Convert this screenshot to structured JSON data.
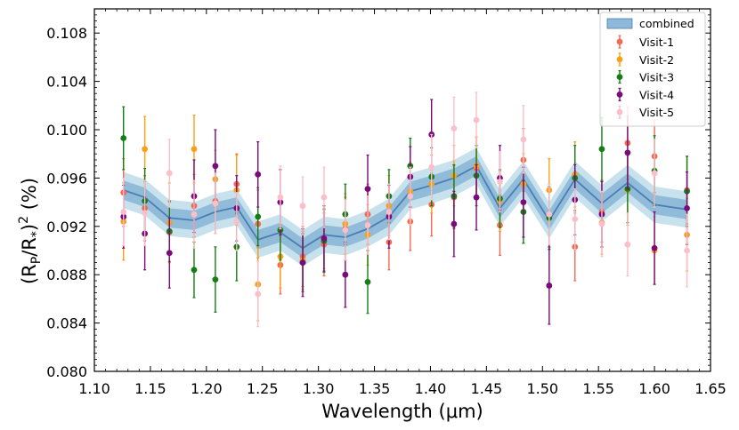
{
  "chart_data": {
    "type": "scatter",
    "xlabel": "Wavelength (μm)",
    "ylabel": "(Rp/R*)^2 (%)",
    "xlim": [
      1.1,
      1.65
    ],
    "ylim": [
      0.08,
      0.11
    ],
    "x_ticks": [
      "1.10",
      "1.15",
      "1.20",
      "1.25",
      "1.30",
      "1.35",
      "1.40",
      "1.45",
      "1.50",
      "1.55",
      "1.60",
      "1.65"
    ],
    "y_ticks": [
      "0.080",
      "0.084",
      "0.088",
      "0.092",
      "0.096",
      "0.100",
      "0.104",
      "0.108"
    ],
    "legend_position": "top-right",
    "wavelengths": [
      1.126,
      1.145,
      1.167,
      1.189,
      1.208,
      1.227,
      1.246,
      1.266,
      1.286,
      1.305,
      1.324,
      1.344,
      1.363,
      1.382,
      1.401,
      1.421,
      1.441,
      1.462,
      1.483,
      1.506,
      1.529,
      1.553,
      1.576,
      1.6,
      1.629
    ],
    "combined": {
      "name": "combined",
      "color": "#4a7eb5",
      "mean": [
        0.095,
        0.0944,
        0.0927,
        0.0925,
        0.0932,
        0.0936,
        0.0909,
        0.0915,
        0.0902,
        0.0913,
        0.0911,
        0.0918,
        0.0928,
        0.0949,
        0.0954,
        0.096,
        0.097,
        0.0935,
        0.0959,
        0.0925,
        0.0959,
        0.0939,
        0.0956,
        0.0938,
        0.0934
      ],
      "band1": 0.0008,
      "band2": 0.0015
    },
    "series": [
      {
        "name": "Visit-1",
        "color": "#f26a4f",
        "y": [
          0.0948,
          0.0935,
          0.0915,
          0.0937,
          0.0941,
          0.0955,
          0.0922,
          0.0888,
          0.0895,
          0.0905,
          0.0918,
          0.093,
          0.0907,
          0.0924,
          0.0938,
          0.0944,
          0.0968,
          0.0921,
          0.0975,
          0.0928,
          0.0903,
          0.0932,
          0.0989,
          0.0978,
          0.095
        ],
        "err": [
          0.0028,
          0.0027,
          0.0025,
          0.0026,
          0.0027,
          0.0025,
          0.0028,
          0.0024,
          0.0025,
          0.0026,
          0.0026,
          0.0025,
          0.0023,
          0.0024,
          0.0026,
          0.0026,
          0.0026,
          0.0025,
          0.0026,
          0.0027,
          0.0028,
          0.0025,
          0.003,
          0.003,
          0.0028
        ]
      },
      {
        "name": "Visit-2",
        "color": "#f9a01b",
        "y": [
          0.0924,
          0.0984,
          0.0923,
          0.0984,
          0.0959,
          0.095,
          0.0872,
          0.0895,
          0.0892,
          0.091,
          0.0922,
          0.0913,
          0.0937,
          0.0949,
          0.0955,
          0.0962,
          0.097,
          0.0941,
          0.0955,
          0.095,
          0.0963,
          0.0923,
          0.095,
          0.09,
          0.0913
        ],
        "err": [
          0.0032,
          0.0027,
          0.0033,
          0.0028,
          0.0024,
          0.0029,
          0.003,
          0.0026,
          0.0024,
          0.0025,
          0.0025,
          0.0025,
          0.0025,
          0.0024,
          0.0024,
          0.0025,
          0.0024,
          0.0025,
          0.0025,
          0.0026,
          0.0027,
          0.0026,
          0.0029,
          0.0028,
          0.003
        ]
      },
      {
        "name": "Visit-3",
        "color": "#167d16",
        "y": [
          0.0993,
          0.0941,
          0.0916,
          0.0884,
          0.0876,
          0.0903,
          0.0928,
          0.0917,
          0.089,
          0.0908,
          0.093,
          0.0874,
          0.0945,
          0.097,
          0.0961,
          0.0945,
          0.0962,
          0.0943,
          0.0932,
          0.0927,
          0.096,
          0.0984,
          0.0951,
          0.0966,
          0.0949
        ],
        "err": [
          0.0026,
          0.0027,
          0.0025,
          0.0023,
          0.0027,
          0.0028,
          0.0024,
          0.0025,
          0.0024,
          0.0026,
          0.0025,
          0.0026,
          0.0022,
          0.0023,
          0.0024,
          0.0026,
          0.0025,
          0.0024,
          0.0026,
          0.0026,
          0.0027,
          0.0026,
          0.0028,
          0.0029,
          0.0029
        ]
      },
      {
        "name": "Visit-4",
        "color": "#7b0a7b",
        "y": [
          0.0928,
          0.0914,
          0.0898,
          0.0945,
          0.097,
          0.0935,
          0.0963,
          0.094,
          0.089,
          0.091,
          0.088,
          0.0951,
          0.0928,
          0.0961,
          0.0996,
          0.0922,
          0.0944,
          0.096,
          0.094,
          0.0871,
          0.0942,
          0.093,
          0.0981,
          0.0902,
          0.0935
        ],
        "err": [
          0.0026,
          0.003,
          0.0029,
          0.003,
          0.003,
          0.0027,
          0.0027,
          0.0027,
          0.0028,
          0.0027,
          0.0027,
          0.0028,
          0.0026,
          0.0025,
          0.0029,
          0.0027,
          0.0027,
          0.0027,
          0.0029,
          0.0032,
          0.0029,
          0.0027,
          0.003,
          0.003,
          0.003
        ]
      },
      {
        "name": "Visit-5",
        "color": "#f9c0cb",
        "y": [
          0.0932,
          0.0931,
          0.0964,
          0.093,
          0.0939,
          0.0924,
          0.0864,
          0.0944,
          0.0937,
          0.0944,
          0.0917,
          0.0921,
          0.0932,
          0.0945,
          0.0969,
          0.1001,
          0.1008,
          0.0957,
          0.0992,
          0.093,
          0.0926,
          0.0922,
          0.0905,
          0.0964,
          0.09
        ],
        "err": [
          0.0028,
          0.0027,
          0.0028,
          0.0028,
          0.0025,
          0.0024,
          0.0027,
          0.0026,
          0.0024,
          0.0025,
          0.0025,
          0.0024,
          0.0023,
          0.0024,
          0.0027,
          0.0026,
          0.0023,
          0.0025,
          0.0028,
          0.0025,
          0.0025,
          0.0027,
          0.0026,
          0.0028,
          0.003
        ]
      }
    ]
  }
}
